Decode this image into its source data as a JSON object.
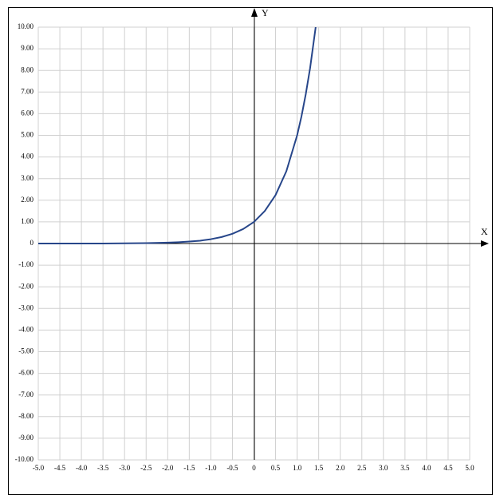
{
  "chart_data": {
    "type": "line",
    "x_label": "X",
    "y_label": "Y",
    "x": [
      -5,
      -4.5,
      -4,
      -3.5,
      -3,
      -2.5,
      -2,
      -1.75,
      -1.5,
      -1.25,
      -1,
      -0.75,
      -0.5,
      -0.25,
      0,
      0.25,
      0.5,
      0.75,
      1,
      1.1,
      1.2,
      1.3,
      1.43
    ],
    "values": [
      0.0,
      0.0,
      0.0,
      0.0,
      0.01,
      0.02,
      0.04,
      0.06,
      0.09,
      0.13,
      0.2,
      0.3,
      0.45,
      0.67,
      1,
      1.5,
      2.24,
      3.34,
      5,
      5.87,
      6.9,
      8.1,
      10.0
    ],
    "color": "#27468a",
    "xlim": [
      -5,
      5
    ],
    "ylim": [
      -10,
      10
    ],
    "grid": true,
    "xticks": [
      {
        "value": -5,
        "label": "-5.0"
      },
      {
        "value": -4.5,
        "label": "-4.5"
      },
      {
        "value": -4,
        "label": "-4.0"
      },
      {
        "value": -3.5,
        "label": "-3.5"
      },
      {
        "value": -3,
        "label": "-3.0"
      },
      {
        "value": -2.5,
        "label": "-2.5"
      },
      {
        "value": -2,
        "label": "-2.0"
      },
      {
        "value": -1.5,
        "label": "-1.5"
      },
      {
        "value": -1,
        "label": "-1.0"
      },
      {
        "value": -0.5,
        "label": "-0.5"
      },
      0,
      0.5,
      {
        "value": 1,
        "label": "1.0"
      },
      1.5,
      {
        "value": 2,
        "label": "2.0"
      },
      2.5,
      {
        "value": 3,
        "label": "3.0"
      },
      3.5,
      {
        "value": 4,
        "label": "4.0"
      },
      4.5,
      {
        "value": 5,
        "label": "5.0"
      }
    ],
    "yticks": [
      {
        "value": -10,
        "label": "-10.00"
      },
      {
        "value": -9,
        "label": "-9.00"
      },
      {
        "value": -8,
        "label": "-8.00"
      },
      {
        "value": -7,
        "label": "-7.00"
      },
      {
        "value": -6,
        "label": "-6.00"
      },
      {
        "value": -5,
        "label": "-5.00"
      },
      {
        "value": -4,
        "label": "-4.00"
      },
      {
        "value": -3,
        "label": "-3.00"
      },
      {
        "value": -2,
        "label": "-2.00"
      },
      {
        "value": -1,
        "label": "-1.00"
      },
      0,
      {
        "value": 1,
        "label": "1.00"
      },
      {
        "value": 2,
        "label": "2.00"
      },
      {
        "value": 3,
        "label": "3.00"
      },
      {
        "value": 4,
        "label": "4.00"
      },
      {
        "value": 5,
        "label": "5.00"
      },
      {
        "value": 6,
        "label": "6.00"
      },
      {
        "value": 7,
        "label": "7.00"
      },
      {
        "value": 8,
        "label": "8.00"
      },
      {
        "value": 9,
        "label": "9.00"
      },
      {
        "value": 10,
        "label": "10.00"
      }
    ]
  }
}
